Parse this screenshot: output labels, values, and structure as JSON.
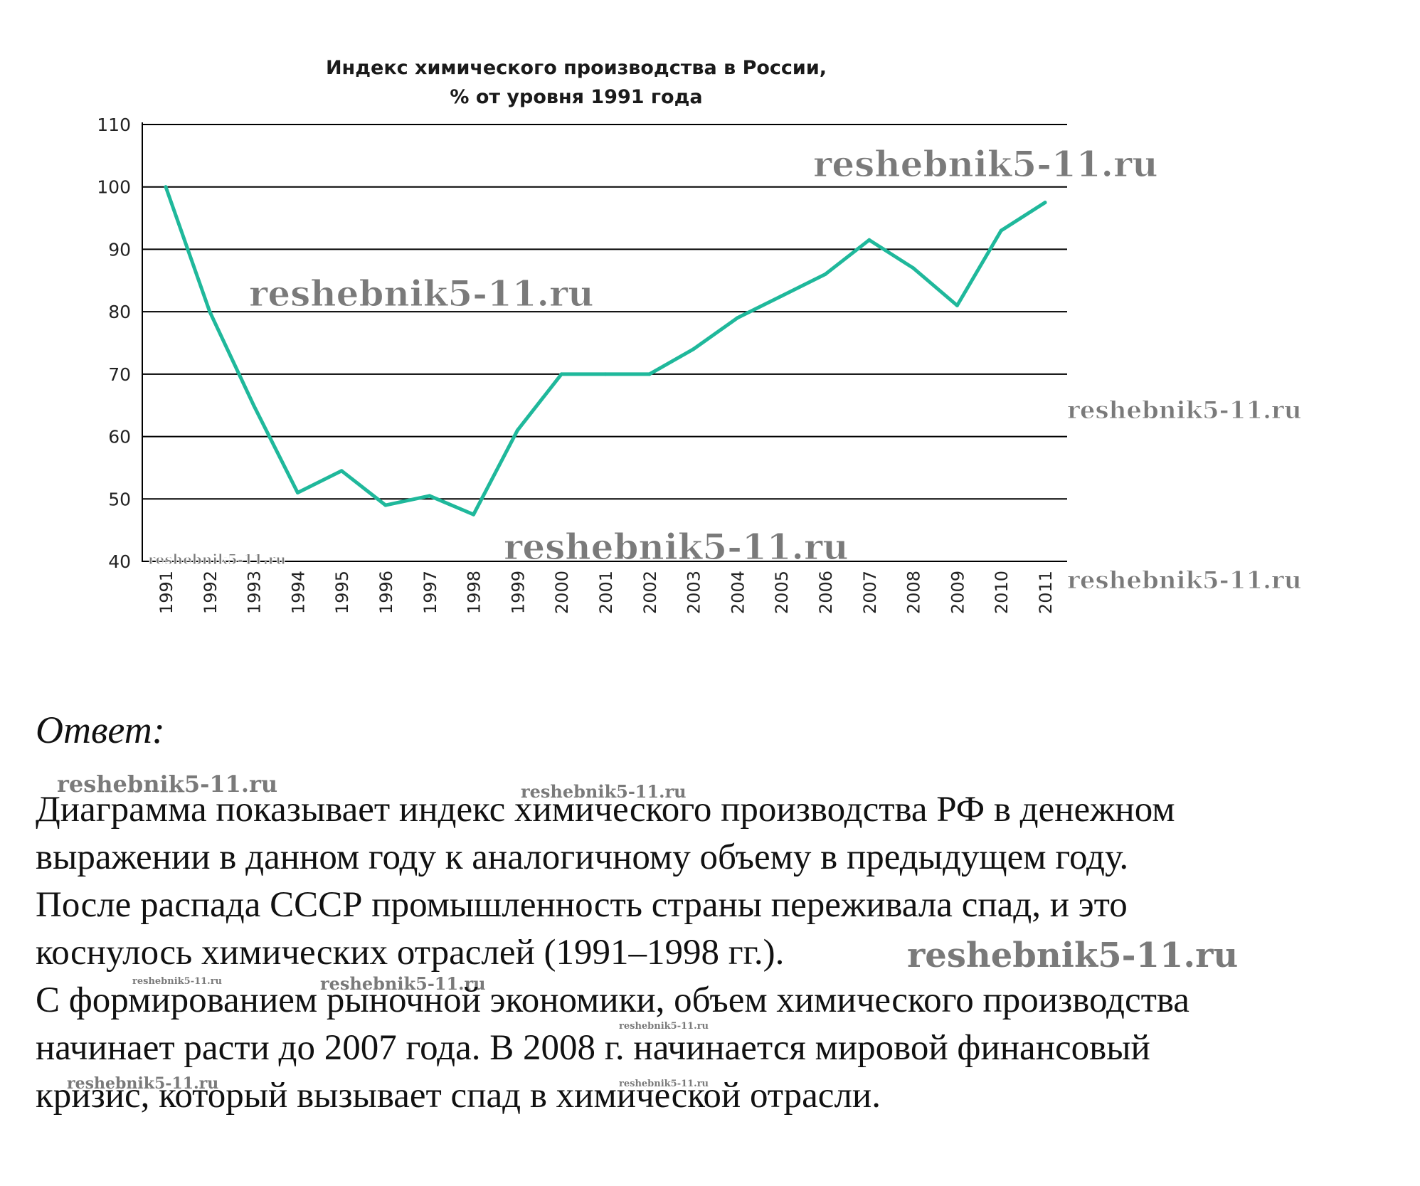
{
  "chart_data": {
    "type": "line",
    "title": [
      "Индекс химического производства в России,",
      "% от уровня 1991 года"
    ],
    "x": [
      "1991",
      "1992",
      "1993",
      "1994",
      "1995",
      "1996",
      "1997",
      "1998",
      "1999",
      "2000",
      "2001",
      "2002",
      "2003",
      "2004",
      "2005",
      "2006",
      "2007",
      "2008",
      "2009",
      "2010",
      "2011"
    ],
    "series": [
      {
        "values": [
          100,
          80,
          65,
          51,
          54.5,
          49,
          50.5,
          47.5,
          61,
          70,
          70,
          70,
          74,
          79,
          82.5,
          86,
          91.5,
          87,
          81,
          93,
          97.5
        ]
      }
    ],
    "yticks": [
      "110",
      "100",
      "90",
      "80",
      "70",
      "60",
      "50",
      "40"
    ],
    "ylim": [
      40,
      110
    ],
    "grid": true,
    "line_color": "#1fb89b"
  },
  "answer": {
    "label": "Ответ:",
    "lines": [
      "Диаграмма показывает индекс химического производства РФ в денежном",
      "выражении в данном году к аналогичному объему в предыдущем году.",
      "После распада СССР промышленность страны переживала спад, и это",
      "коснулось химических отраслей (1991–1998 гг.).",
      "С формированием рыночной экономики, объем химического производства",
      "начинает расти до 2007 года. В 2008 г. начинается мировой финансовый",
      "кризис, который вызывает спад в химической отрасли."
    ]
  },
  "watermark": "reshebnik5-11.ru"
}
